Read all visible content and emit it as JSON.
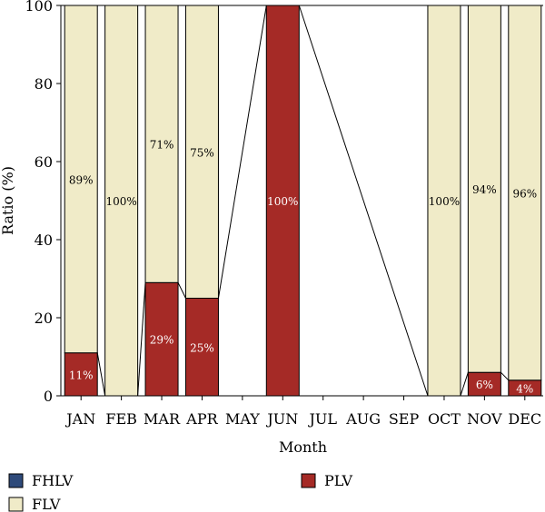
{
  "chart_data": {
    "type": "bar",
    "stacked": true,
    "normalized_percent": true,
    "categories": [
      "JAN",
      "FEB",
      "MAR",
      "APR",
      "MAY",
      "JUN",
      "JUL",
      "AUG",
      "SEP",
      "OCT",
      "NOV",
      "DEC"
    ],
    "series": [
      {
        "name": "FHLV",
        "color": "#2e4a7a",
        "values": [
          0,
          0,
          0,
          0,
          0,
          0,
          0,
          0,
          0,
          0,
          0,
          0
        ]
      },
      {
        "name": "PLV",
        "color": "#a52a26",
        "values": [
          11,
          0,
          29,
          25,
          null,
          100,
          null,
          null,
          null,
          0,
          6,
          4
        ]
      },
      {
        "name": "FLV",
        "color": "#f0ebc8",
        "values": [
          89,
          100,
          71,
          75,
          null,
          0,
          null,
          null,
          null,
          100,
          94,
          96
        ]
      }
    ],
    "data_labels": {
      "PLV": [
        "11%",
        "",
        "29%",
        "25%",
        "",
        "100%",
        "",
        "",
        "",
        "",
        "6%",
        "4%"
      ],
      "FLV": [
        "89%",
        "100%",
        "71%",
        "75%",
        "",
        "",
        "",
        "",
        "",
        "100%",
        "94%",
        "96%"
      ]
    },
    "xlabel": "Month",
    "ylabel": "Ratio (%)",
    "ylim": [
      0,
      100
    ],
    "yticks": [
      0,
      20,
      40,
      60,
      80,
      100
    ],
    "grid": false,
    "legend": {
      "placement": "bottom",
      "entries": [
        "FHLV",
        "PLV",
        "FLV"
      ]
    },
    "connector_lines": true
  }
}
